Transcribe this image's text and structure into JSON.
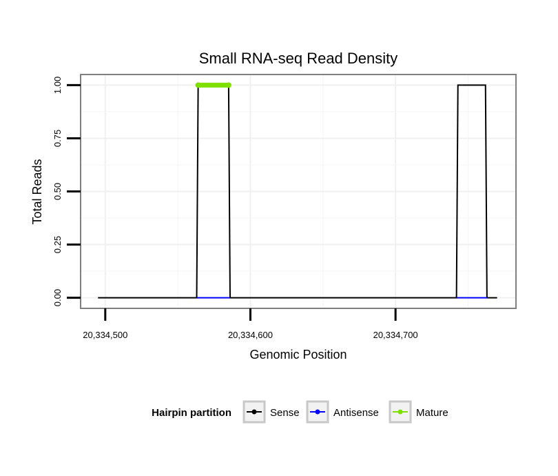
{
  "chart_data": {
    "type": "line",
    "title": "Small RNA-seq Read Density",
    "xlabel": "Genomic Position",
    "ylabel": "Total Reads",
    "xlim": [
      20334483,
      20334783
    ],
    "ylim": [
      -0.05,
      1.05
    ],
    "x_ticks": [
      {
        "value": 20334500,
        "label": "20,334,500"
      },
      {
        "value": 20334600,
        "label": "20,334,600"
      },
      {
        "value": 20334700,
        "label": "20,334,700"
      }
    ],
    "y_ticks": [
      {
        "value": 0.0,
        "label": "0.00"
      },
      {
        "value": 0.25,
        "label": "0.25"
      },
      {
        "value": 0.5,
        "label": "0.50"
      },
      {
        "value": 0.75,
        "label": "0.75"
      },
      {
        "value": 1.0,
        "label": "1.00"
      }
    ],
    "grid": true,
    "legend": {
      "title": "Hairpin partition",
      "position": "bottom",
      "entries": [
        {
          "name": "Sense",
          "color": "#000000"
        },
        {
          "name": "Antisense",
          "color": "#0000ff"
        },
        {
          "name": "Mature",
          "color": "#7fe000"
        }
      ]
    },
    "series": [
      {
        "name": "Sense",
        "color": "#000000",
        "x": [
          20334495,
          20334563,
          20334564,
          20334585,
          20334586,
          20334742,
          20334743,
          20334762,
          20334763,
          20334770
        ],
        "y": [
          0,
          0,
          1,
          1,
          0,
          0,
          1,
          1,
          0,
          0
        ]
      },
      {
        "name": "Antisense",
        "color": "#0000ff",
        "x": [
          20334563,
          20334586,
          20334742,
          20334763
        ],
        "y": [
          0,
          0,
          0,
          0
        ],
        "segments": [
          [
            0,
            1
          ],
          [
            2,
            3
          ]
        ]
      },
      {
        "name": "Mature",
        "color": "#7fe000",
        "x": [
          20334564,
          20334585
        ],
        "y": [
          1,
          1
        ]
      }
    ]
  }
}
